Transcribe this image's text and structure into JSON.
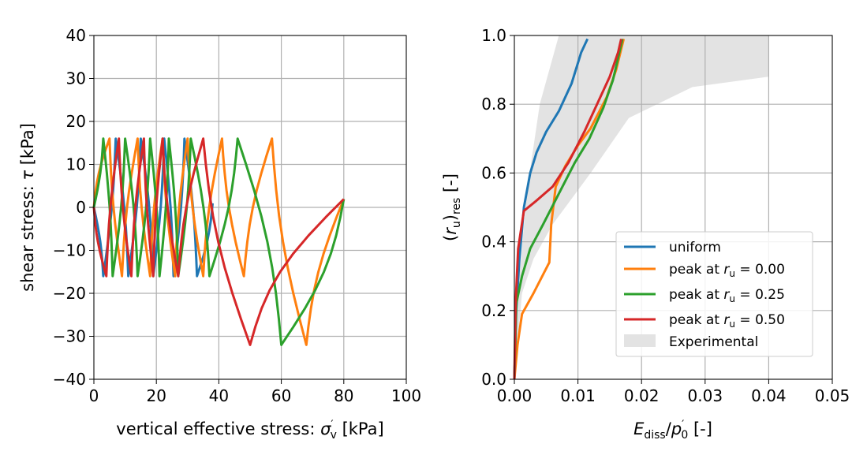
{
  "chart_data": [
    {
      "type": "line",
      "title": "",
      "xlabel": "vertical effective stress: σ′v [kPa]",
      "xlabel_parts": {
        "pre": "vertical effective stress: ",
        "sym": "σ",
        "sup": "′",
        "sub": "v",
        "post": " [kPa]"
      },
      "ylabel": "shear stress: τ [kPa]",
      "ylabel_parts": {
        "pre": "shear stress: ",
        "sym": "τ",
        "post": " [kPa]"
      },
      "xlim": [
        0,
        100
      ],
      "ylim": [
        -40,
        40
      ],
      "xticks": [
        0,
        20,
        40,
        60,
        80,
        100
      ],
      "yticks": [
        -40,
        -30,
        -20,
        -10,
        0,
        10,
        20,
        30,
        40
      ],
      "grid": true,
      "series": [
        {
          "name": "uniform",
          "color": "#1f77b4",
          "amplitudes": [
            16,
            16,
            16,
            16,
            16,
            16,
            16
          ],
          "centers": [
            38,
            33,
            29,
            25.5,
            22.5,
            19,
            15,
            11,
            7,
            3,
            0
          ]
        },
        {
          "name": "peak at r_u = 0.00",
          "color": "#ff7f0e",
          "amplitudes": [
            32,
            16,
            16,
            16,
            16,
            16,
            16,
            16
          ],
          "centers": [
            80,
            68,
            57,
            48,
            41,
            35,
            30,
            26,
            22,
            18,
            14,
            9,
            5,
            0
          ]
        },
        {
          "name": "peak at r_u = 0.25",
          "color": "#2ca02c",
          "amplitudes": [
            32,
            16,
            16,
            16,
            16,
            16,
            16,
            16
          ],
          "centers": [
            80,
            60,
            46,
            37,
            31,
            27,
            24,
            21,
            18,
            14,
            10,
            6,
            3,
            0
          ]
        },
        {
          "name": "peak at r_u = 0.50",
          "color": "#d62728",
          "amplitudes": [
            32,
            16,
            16,
            16,
            16,
            16
          ],
          "centers": [
            80,
            50,
            35,
            27,
            22,
            19,
            16,
            12,
            8,
            4,
            0
          ]
        }
      ]
    },
    {
      "type": "line",
      "title": "",
      "xlabel": "E_diss / p′0 [-]",
      "xlabel_parts": {
        "sym": "E",
        "sub": "diss",
        "mid": "/",
        "sym2": "p",
        "sup2": "′",
        "sub2": "0",
        "post": " [-]"
      },
      "ylabel": "(r_u)_res [-]",
      "ylabel_parts": {
        "open": "(",
        "sym": "r",
        "sub": "u",
        "close": ")",
        "sub2": "res",
        "post": " [-]"
      },
      "xlim": [
        0,
        0.05
      ],
      "ylim": [
        0,
        1.0
      ],
      "xticks": [
        "0.00",
        "0.01",
        "0.02",
        "0.03",
        "0.04",
        "0.05"
      ],
      "yticks": [
        "0.0",
        "0.2",
        "0.4",
        "0.6",
        "0.8",
        "1.0"
      ],
      "grid": true,
      "legend_position": "lower-right",
      "experimental_band": {
        "name": "Experimental",
        "color": "#e3e3e3",
        "upper": [
          [
            0,
            0.0
          ],
          [
            0.0008,
            0.3
          ],
          [
            0.002,
            0.55
          ],
          [
            0.004,
            0.8
          ],
          [
            0.007,
            1.0
          ],
          [
            0.04,
            1.0
          ]
        ],
        "lower": [
          [
            0.04,
            0.88
          ],
          [
            0.028,
            0.85
          ],
          [
            0.018,
            0.76
          ],
          [
            0.012,
            0.6
          ],
          [
            0.006,
            0.45
          ],
          [
            0.003,
            0.35
          ],
          [
            0.0012,
            0.25
          ],
          [
            0,
            0.0
          ]
        ]
      },
      "series": [
        {
          "name": "uniform",
          "label_pre": "uniform",
          "label_ru": "",
          "color": "#1f77b4",
          "x": [
            0,
            0.0003,
            0.0008,
            0.0015,
            0.0025,
            0.0035,
            0.005,
            0.007,
            0.009,
            0.0105,
            0.0115
          ],
          "y": [
            0,
            0.2,
            0.35,
            0.5,
            0.6,
            0.66,
            0.72,
            0.78,
            0.86,
            0.95,
            0.99
          ]
        },
        {
          "name": "peak at r_u = 0.00",
          "label_pre": "peak at ",
          "label_ru": "0.00",
          "color": "#ff7f0e",
          "x": [
            0,
            0.0005,
            0.0012,
            0.003,
            0.0055,
            0.0058,
            0.0065,
            0.008,
            0.01,
            0.012,
            0.0145,
            0.016,
            0.0168,
            0.0172
          ],
          "y": [
            0,
            0.1,
            0.19,
            0.25,
            0.34,
            0.45,
            0.56,
            0.62,
            0.68,
            0.73,
            0.82,
            0.9,
            0.96,
            0.99
          ]
        },
        {
          "name": "peak at r_u = 0.25",
          "label_pre": "peak at ",
          "label_ru": "0.25",
          "color": "#2ca02c",
          "x": [
            0,
            0.0003,
            0.0012,
            0.0025,
            0.0045,
            0.007,
            0.0095,
            0.0118,
            0.014,
            0.0155,
            0.0165,
            0.017
          ],
          "y": [
            0,
            0.22,
            0.3,
            0.38,
            0.45,
            0.54,
            0.63,
            0.7,
            0.79,
            0.87,
            0.95,
            0.99
          ]
        },
        {
          "name": "peak at r_u = 0.50",
          "label_pre": "peak at ",
          "label_ru": "0.50",
          "color": "#d62728",
          "x": [
            0,
            0.0002,
            0.0006,
            0.0015,
            0.0035,
            0.006,
            0.0085,
            0.011,
            0.013,
            0.015,
            0.0163,
            0.0168
          ],
          "y": [
            0,
            0.22,
            0.38,
            0.49,
            0.52,
            0.56,
            0.63,
            0.72,
            0.8,
            0.88,
            0.95,
            0.99
          ]
        }
      ]
    }
  ]
}
